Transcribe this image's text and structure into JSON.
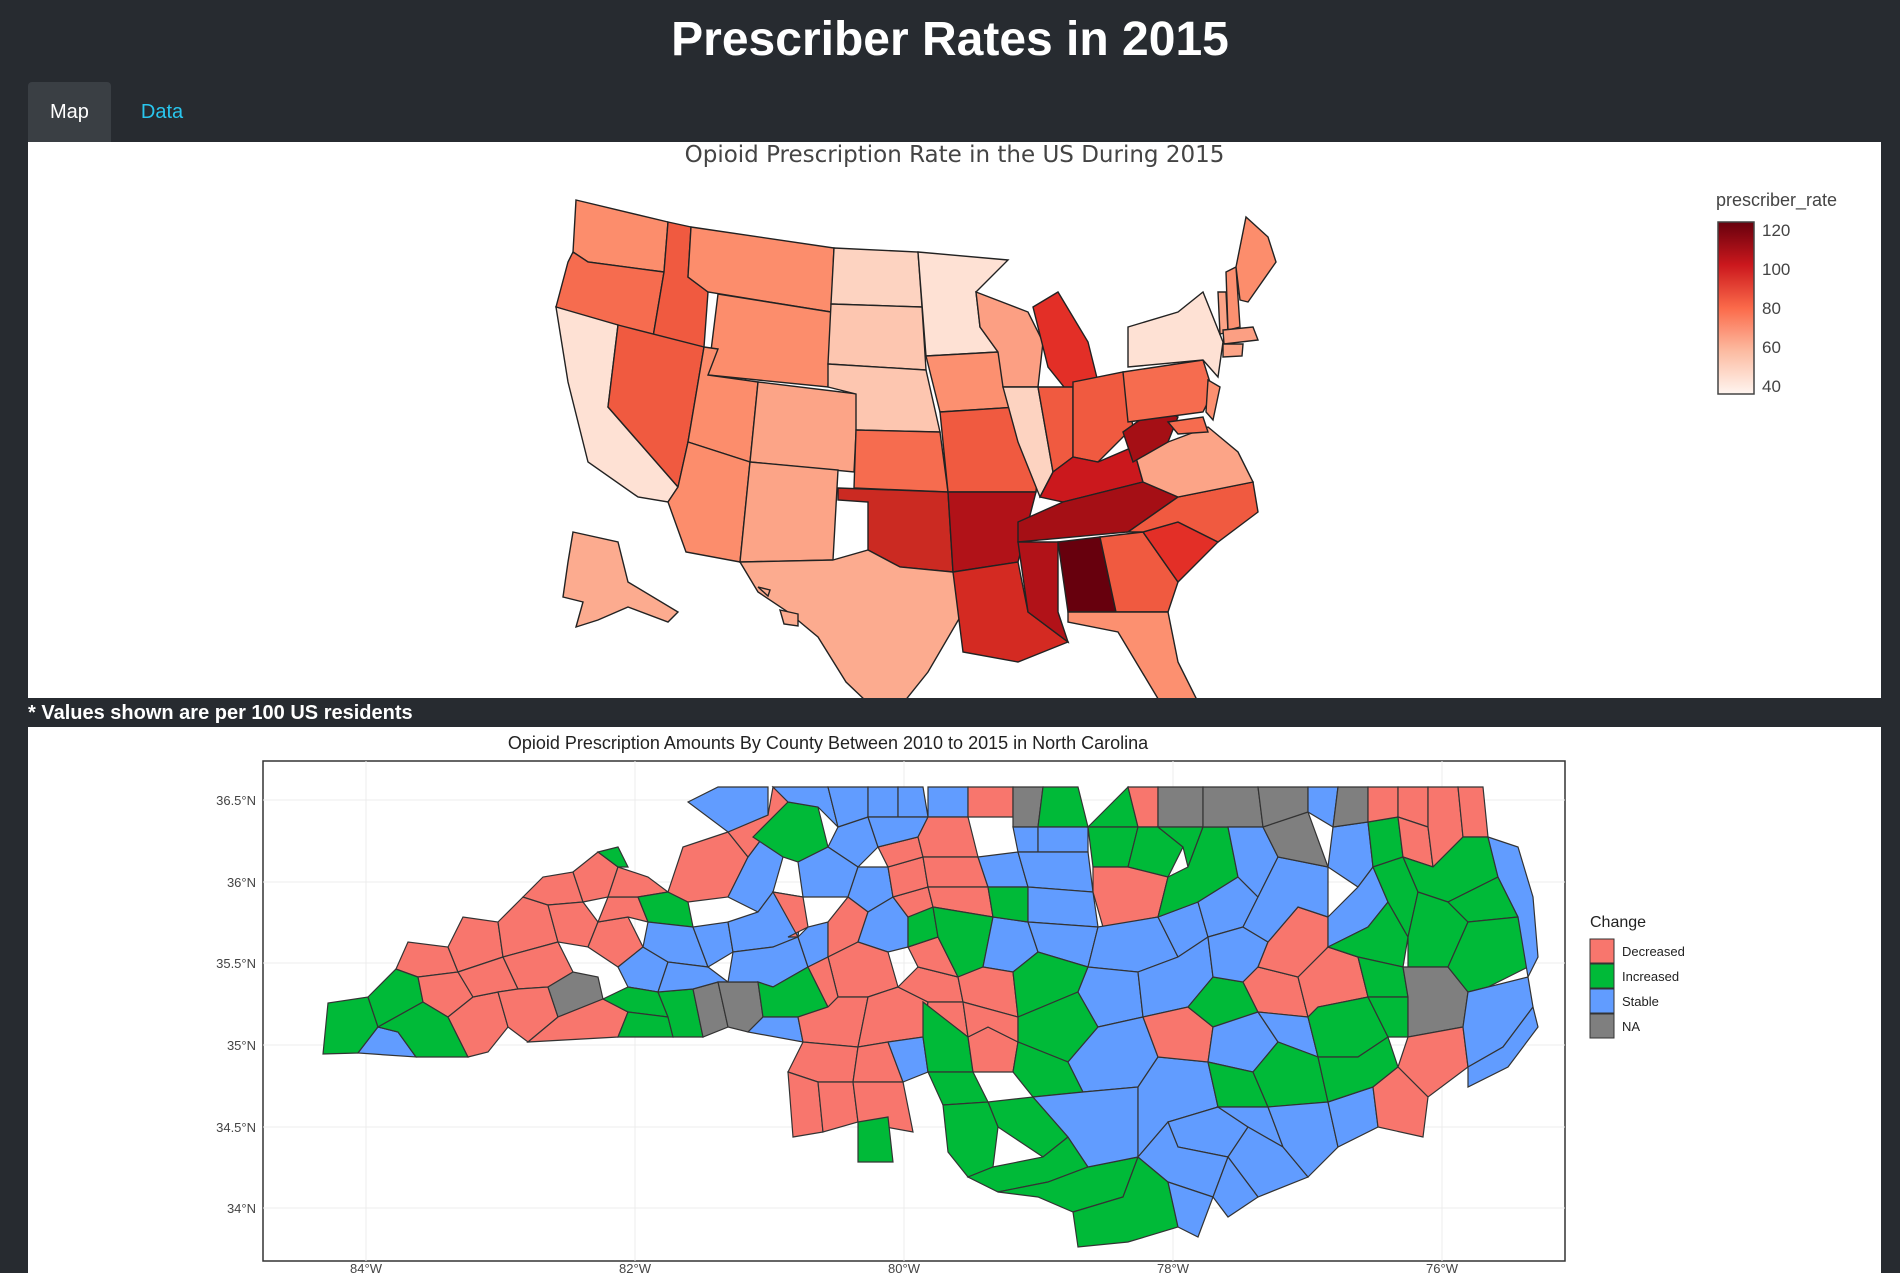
{
  "header": {
    "title": "Prescriber Rates in 2015"
  },
  "tabs": [
    {
      "label": "Map"
    },
    {
      "label": "Data"
    }
  ],
  "us_map": {
    "title": "Opioid Prescription Rate in the US During 2015",
    "colorbar": {
      "title": "prescriber_rate",
      "ticks": [
        "120",
        "100",
        "80",
        "60",
        "40"
      ]
    },
    "palette": [
      "#fff5f0",
      "#fcbba1",
      "#fb6a4a",
      "#cb181d",
      "#67000d"
    ]
  },
  "footnote": "* Values shown are per 100 US residents",
  "nc_map": {
    "title": "Opioid Prescription Amounts By County Between 2010 to 2015 in North Carolina",
    "y_ticks": [
      "36.5°N",
      "36°N",
      "35.5°N",
      "35°N",
      "34.5°N",
      "34°N"
    ],
    "x_ticks": [
      "84°W",
      "82°W",
      "80°W",
      "78°W",
      "76°W"
    ],
    "legend": {
      "title": "Change",
      "items": [
        {
          "label": "Decreased",
          "color": "#f8766d"
        },
        {
          "label": "Increased",
          "color": "#00ba38"
        },
        {
          "label": "Stable",
          "color": "#619cff"
        },
        {
          "label": "NA",
          "color": "#7f7f7f"
        }
      ]
    }
  }
}
